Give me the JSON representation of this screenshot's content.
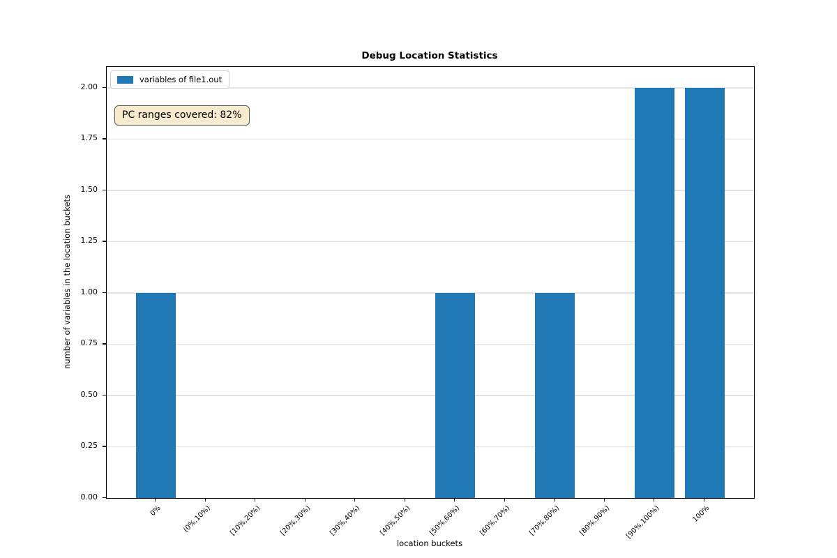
{
  "chart_data": {
    "type": "bar",
    "title": "Debug Location Statistics",
    "xlabel": "location buckets",
    "ylabel": "number of variables in the location buckets",
    "categories": [
      "0%",
      "(0%,10%)",
      "[10%,20%)",
      "[20%,30%)",
      "[30%,40%)",
      "[40%,50%)",
      "[50%,60%)",
      "[60%,70%)",
      "[70%,80%)",
      "[80%,90%)",
      "[90%,100%)",
      "100%"
    ],
    "values": [
      1,
      0,
      0,
      0,
      0,
      0,
      1,
      0,
      1,
      0,
      2,
      2
    ],
    "yticks": [
      0.0,
      0.25,
      0.5,
      0.75,
      1.0,
      1.25,
      1.5,
      1.75,
      2.0
    ],
    "ytick_labels": [
      "0.00",
      "0.25",
      "0.50",
      "0.75",
      "1.00",
      "1.25",
      "1.50",
      "1.75",
      "2.00"
    ],
    "ylim": [
      0,
      2.1
    ],
    "grid": "horizontal",
    "bar_color": "#1f77b4",
    "legend": {
      "position": "upper-left",
      "entries": [
        {
          "label": "variables of file1.out",
          "color": "#1f77b4"
        }
      ]
    },
    "annotation": {
      "text": "PC ranges covered: 82%",
      "bg_color": "#f7ebcf",
      "border_color": "#5d594f"
    }
  },
  "colors": {
    "grid": "#e4e4e4",
    "frame": "#000000",
    "background": "#ffffff"
  }
}
